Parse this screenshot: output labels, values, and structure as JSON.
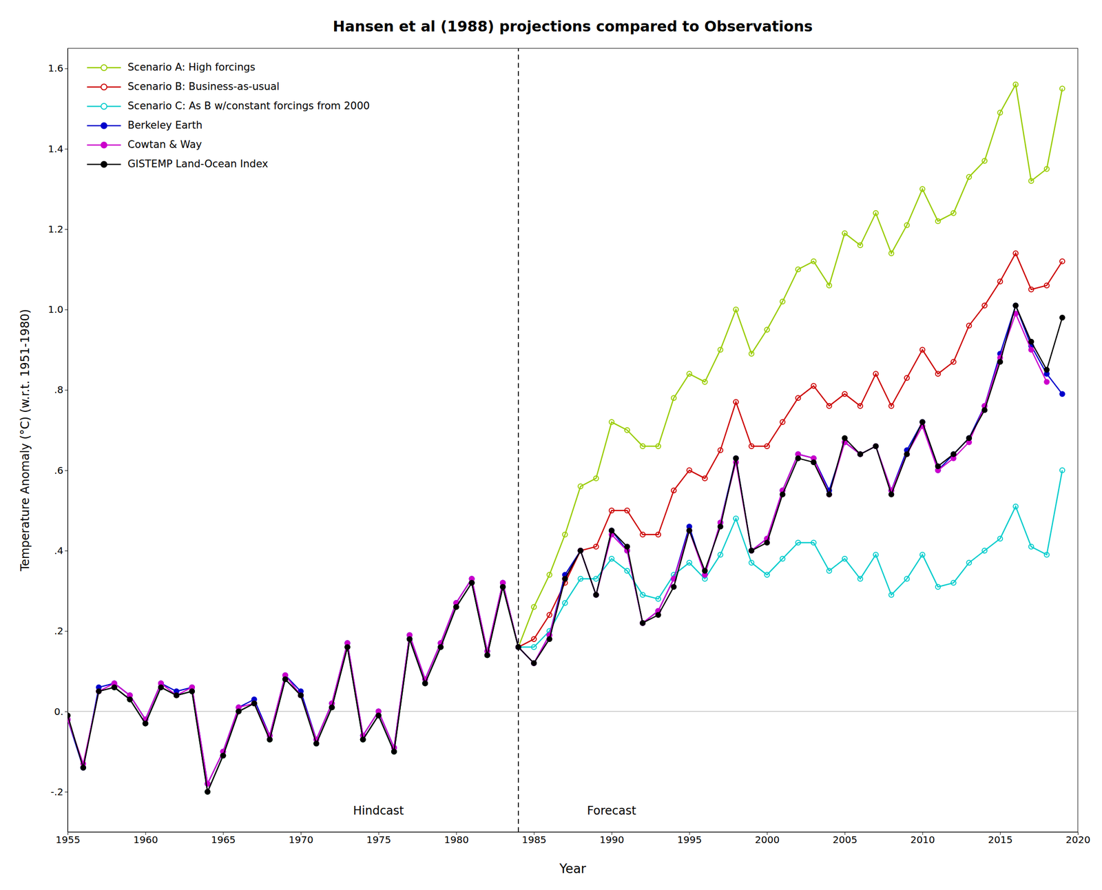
{
  "chart_data": {
    "type": "line",
    "title": "Hansen et al (1988) projections compared to Observations",
    "x_label": "Year",
    "y_label": "Temperature Anomaly (°C) (w.r.t. 1951-1980)",
    "xlim": [
      1955,
      2020
    ],
    "ylim": [
      -0.3,
      1.65
    ],
    "xticks": [
      1955,
      1960,
      1965,
      1970,
      1975,
      1980,
      1985,
      1990,
      1995,
      2000,
      2005,
      2010,
      2015,
      2020
    ],
    "yticks": [
      {
        "value": -0.2,
        "label": "-.2"
      },
      {
        "value": 0.0,
        "label": "0."
      },
      {
        "value": 0.2,
        "label": ".2"
      },
      {
        "value": 0.4,
        "label": ".4"
      },
      {
        "value": 0.6,
        "label": ".6"
      },
      {
        "value": 0.8,
        "label": ".8"
      },
      {
        "value": 1.0,
        "label": "1.0"
      },
      {
        "value": 1.2,
        "label": "1.2"
      },
      {
        "value": 1.4,
        "label": "1.4"
      },
      {
        "value": 1.6,
        "label": "1.6"
      }
    ],
    "grid": false,
    "legend": "upper left",
    "reference_lines": [
      {
        "axis": "y",
        "value": 0,
        "color": "#aaaaaa",
        "line_style": "solid"
      },
      {
        "axis": "x",
        "value": 1984,
        "color": "#000000",
        "line_style": "dashed"
      }
    ],
    "annotations": [
      {
        "text": "Hindcast",
        "x": 1975,
        "y": -0.235
      },
      {
        "text": "Forecast",
        "x": 1990,
        "y": -0.235
      }
    ],
    "series": [
      {
        "name": "Scenario A: High forcings",
        "color": "#99cc00",
        "marker": "circle-open",
        "line_style": "solid",
        "x": [
          1958,
          1959,
          1960,
          1961,
          1962,
          1963,
          1964,
          1965,
          1966,
          1967,
          1968,
          1969,
          1970,
          1971,
          1972,
          1973,
          1974,
          1975,
          1976,
          1977,
          1978,
          1979,
          1980,
          1981,
          1982,
          1983,
          1984,
          1985,
          1986,
          1987,
          1988,
          1989,
          1990,
          1991,
          1992,
          1993,
          1994,
          1995,
          1996,
          1997,
          1998,
          1999,
          2000,
          2001,
          2002,
          2003,
          2004,
          2005,
          2006,
          2007,
          2008,
          2009,
          2010,
          2011,
          2012,
          2013,
          2014,
          2015,
          2016,
          2017,
          2018,
          2019
        ],
        "values": [
          0.06,
          0.03,
          -0.03,
          0.06,
          0.04,
          0.05,
          -0.2,
          -0.11,
          0.0,
          0.02,
          -0.07,
          0.08,
          0.04,
          -0.08,
          0.01,
          0.16,
          -0.07,
          -0.01,
          -0.1,
          0.18,
          0.07,
          0.16,
          0.26,
          0.32,
          0.14,
          0.31,
          0.16,
          0.26,
          0.34,
          0.44,
          0.56,
          0.58,
          0.72,
          0.7,
          0.66,
          0.66,
          0.78,
          0.84,
          0.82,
          0.9,
          1.0,
          0.89,
          0.95,
          1.02,
          1.1,
          1.12,
          1.06,
          1.19,
          1.16,
          1.24,
          1.14,
          1.21,
          1.3,
          1.22,
          1.24,
          1.33,
          1.37,
          1.49,
          1.56,
          1.32,
          1.35,
          1.55
        ]
      },
      {
        "name": "Scenario B: Business-as-usual",
        "color": "#cc0000",
        "marker": "circle-open",
        "line_style": "solid",
        "x": [
          1958,
          1959,
          1960,
          1961,
          1962,
          1963,
          1964,
          1965,
          1966,
          1967,
          1968,
          1969,
          1970,
          1971,
          1972,
          1973,
          1974,
          1975,
          1976,
          1977,
          1978,
          1979,
          1980,
          1981,
          1982,
          1983,
          1984,
          1985,
          1986,
          1987,
          1988,
          1989,
          1990,
          1991,
          1992,
          1993,
          1994,
          1995,
          1996,
          1997,
          1998,
          1999,
          2000,
          2001,
          2002,
          2003,
          2004,
          2005,
          2006,
          2007,
          2008,
          2009,
          2010,
          2011,
          2012,
          2013,
          2014,
          2015,
          2016,
          2017,
          2018,
          2019
        ],
        "values": [
          0.06,
          0.03,
          -0.03,
          0.06,
          0.04,
          0.05,
          -0.2,
          -0.11,
          0.0,
          0.02,
          -0.07,
          0.08,
          0.04,
          -0.08,
          0.01,
          0.16,
          -0.07,
          -0.01,
          -0.1,
          0.18,
          0.07,
          0.16,
          0.26,
          0.32,
          0.14,
          0.31,
          0.16,
          0.18,
          0.24,
          0.32,
          0.4,
          0.41,
          0.5,
          0.5,
          0.44,
          0.44,
          0.55,
          0.6,
          0.58,
          0.65,
          0.77,
          0.66,
          0.66,
          0.72,
          0.78,
          0.81,
          0.76,
          0.79,
          0.76,
          0.84,
          0.76,
          0.83,
          0.9,
          0.84,
          0.87,
          0.96,
          1.01,
          1.07,
          1.14,
          1.05,
          1.06,
          1.12
        ]
      },
      {
        "name": "Scenario C: As B w/constant forcings from 2000",
        "color": "#00cccc",
        "marker": "circle-open",
        "line_style": "solid",
        "x": [
          1958,
          1959,
          1960,
          1961,
          1962,
          1963,
          1964,
          1965,
          1966,
          1967,
          1968,
          1969,
          1970,
          1971,
          1972,
          1973,
          1974,
          1975,
          1976,
          1977,
          1978,
          1979,
          1980,
          1981,
          1982,
          1983,
          1984,
          1985,
          1986,
          1987,
          1988,
          1989,
          1990,
          1991,
          1992,
          1993,
          1994,
          1995,
          1996,
          1997,
          1998,
          1999,
          2000,
          2001,
          2002,
          2003,
          2004,
          2005,
          2006,
          2007,
          2008,
          2009,
          2010,
          2011,
          2012,
          2013,
          2014,
          2015,
          2016,
          2017,
          2018,
          2019
        ],
        "values": [
          0.06,
          0.03,
          -0.03,
          0.06,
          0.04,
          0.05,
          -0.2,
          -0.11,
          0.0,
          0.02,
          -0.07,
          0.08,
          0.04,
          -0.08,
          0.01,
          0.16,
          -0.07,
          -0.01,
          -0.1,
          0.18,
          0.07,
          0.16,
          0.26,
          0.32,
          0.14,
          0.31,
          0.16,
          0.16,
          0.2,
          0.27,
          0.33,
          0.33,
          0.38,
          0.35,
          0.29,
          0.28,
          0.34,
          0.37,
          0.33,
          0.39,
          0.48,
          0.37,
          0.34,
          0.38,
          0.42,
          0.42,
          0.35,
          0.38,
          0.33,
          0.39,
          0.29,
          0.33,
          0.39,
          0.31,
          0.32,
          0.37,
          0.4,
          0.43,
          0.51,
          0.41,
          0.39,
          0.6
        ]
      },
      {
        "name": "Berkeley Earth",
        "color": "#0000cc",
        "marker": "circle",
        "line_style": "solid",
        "x": [
          1955,
          1956,
          1957,
          1958,
          1959,
          1960,
          1961,
          1962,
          1963,
          1964,
          1965,
          1966,
          1967,
          1968,
          1969,
          1970,
          1971,
          1972,
          1973,
          1974,
          1975,
          1976,
          1977,
          1978,
          1979,
          1980,
          1981,
          1982,
          1983,
          1984,
          1985,
          1986,
          1987,
          1988,
          1989,
          1990,
          1991,
          1992,
          1993,
          1994,
          1995,
          1996,
          1997,
          1998,
          1999,
          2000,
          2001,
          2002,
          2003,
          2004,
          2005,
          2006,
          2007,
          2008,
          2009,
          2010,
          2011,
          2012,
          2013,
          2014,
          2015,
          2016,
          2017,
          2018,
          2019
        ],
        "values": [
          -0.02,
          -0.14,
          0.06,
          0.07,
          0.04,
          -0.02,
          0.07,
          0.05,
          0.06,
          -0.18,
          -0.1,
          0.01,
          0.03,
          -0.06,
          0.09,
          0.05,
          -0.07,
          0.02,
          0.17,
          -0.06,
          0.0,
          -0.09,
          0.19,
          0.08,
          0.17,
          0.27,
          0.33,
          0.15,
          0.32,
          0.16,
          0.12,
          0.19,
          0.34,
          0.4,
          0.29,
          0.45,
          0.4,
          0.22,
          0.25,
          0.33,
          0.46,
          0.34,
          0.47,
          0.63,
          0.4,
          0.43,
          0.55,
          0.64,
          0.63,
          0.55,
          0.67,
          0.64,
          0.66,
          0.55,
          0.65,
          0.72,
          0.6,
          0.64,
          0.68,
          0.76,
          0.89,
          1.01,
          0.91,
          0.84,
          0.79
        ]
      },
      {
        "name": "Cowtan & Way",
        "color": "#cc00cc",
        "marker": "circle",
        "line_style": "solid",
        "x": [
          1955,
          1956,
          1957,
          1958,
          1959,
          1960,
          1961,
          1962,
          1963,
          1964,
          1965,
          1966,
          1967,
          1968,
          1969,
          1970,
          1971,
          1972,
          1973,
          1974,
          1975,
          1976,
          1977,
          1978,
          1979,
          1980,
          1981,
          1982,
          1983,
          1984,
          1985,
          1986,
          1987,
          1988,
          1989,
          1990,
          1991,
          1992,
          1993,
          1994,
          1995,
          1996,
          1997,
          1998,
          1999,
          2000,
          2001,
          2002,
          2003,
          2004,
          2005,
          2006,
          2007,
          2008,
          2009,
          2010,
          2011,
          2012,
          2013,
          2014,
          2015,
          2016,
          2017,
          2018
        ],
        "values": [
          -0.02,
          -0.13,
          0.05,
          0.07,
          0.04,
          -0.02,
          0.07,
          0.04,
          0.06,
          -0.18,
          -0.1,
          0.01,
          0.02,
          -0.06,
          0.09,
          0.04,
          -0.07,
          0.02,
          0.17,
          -0.06,
          0.0,
          -0.09,
          0.19,
          0.08,
          0.17,
          0.27,
          0.33,
          0.15,
          0.32,
          0.16,
          0.12,
          0.19,
          0.33,
          0.4,
          0.29,
          0.44,
          0.4,
          0.22,
          0.25,
          0.33,
          0.45,
          0.34,
          0.47,
          0.62,
          0.4,
          0.43,
          0.55,
          0.64,
          0.63,
          0.54,
          0.67,
          0.64,
          0.66,
          0.55,
          0.64,
          0.71,
          0.6,
          0.63,
          0.67,
          0.76,
          0.88,
          0.99,
          0.9,
          0.82
        ]
      },
      {
        "name": "GISTEMP Land-Ocean Index",
        "color": "#000000",
        "marker": "circle",
        "line_style": "solid",
        "x": [
          1955,
          1956,
          1957,
          1958,
          1959,
          1960,
          1961,
          1962,
          1963,
          1964,
          1965,
          1966,
          1967,
          1968,
          1969,
          1970,
          1971,
          1972,
          1973,
          1974,
          1975,
          1976,
          1977,
          1978,
          1979,
          1980,
          1981,
          1982,
          1983,
          1984,
          1985,
          1986,
          1987,
          1988,
          1989,
          1990,
          1991,
          1992,
          1993,
          1994,
          1995,
          1996,
          1997,
          1998,
          1999,
          2000,
          2001,
          2002,
          2003,
          2004,
          2005,
          2006,
          2007,
          2008,
          2009,
          2010,
          2011,
          2012,
          2013,
          2014,
          2015,
          2016,
          2017,
          2018,
          2019
        ],
        "values": [
          -0.01,
          -0.14,
          0.05,
          0.06,
          0.03,
          -0.03,
          0.06,
          0.04,
          0.05,
          -0.2,
          -0.11,
          0.0,
          0.02,
          -0.07,
          0.08,
          0.04,
          -0.08,
          0.01,
          0.16,
          -0.07,
          -0.01,
          -0.1,
          0.18,
          0.07,
          0.16,
          0.26,
          0.32,
          0.14,
          0.31,
          0.16,
          0.12,
          0.18,
          0.33,
          0.4,
          0.29,
          0.45,
          0.41,
          0.22,
          0.24,
          0.31,
          0.45,
          0.35,
          0.46,
          0.63,
          0.4,
          0.42,
          0.54,
          0.63,
          0.62,
          0.54,
          0.68,
          0.64,
          0.66,
          0.54,
          0.64,
          0.72,
          0.61,
          0.64,
          0.68,
          0.75,
          0.87,
          1.01,
          0.92,
          0.85,
          0.98
        ]
      }
    ]
  }
}
